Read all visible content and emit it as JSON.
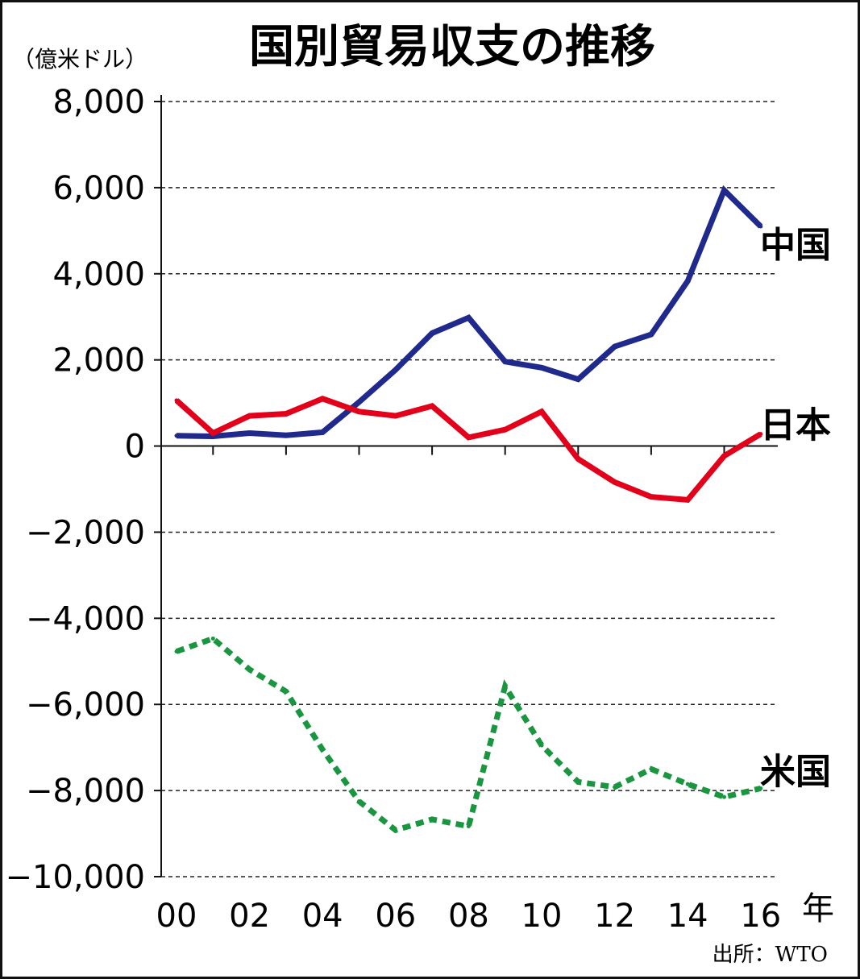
{
  "chart_data": {
    "type": "line",
    "title": "国別貿易収支の推移",
    "ylabel": "（億米ドル）",
    "xlabel": "年",
    "source": "出所：WTO",
    "ylim": [
      -10000,
      8000
    ],
    "yticks": [
      8000,
      6000,
      4000,
      2000,
      0,
      -2000,
      -4000,
      -6000,
      -8000,
      -10000
    ],
    "ytick_labels": [
      "8,000",
      "6,000",
      "4,000",
      "2,000",
      "0",
      "−2,000",
      "−4,000",
      "−6,000",
      "−8,000",
      "−10,000"
    ],
    "x": [
      2000,
      2001,
      2002,
      2003,
      2004,
      2005,
      2006,
      2007,
      2008,
      2009,
      2010,
      2011,
      2012,
      2013,
      2014,
      2015,
      2016
    ],
    "xtick_values": [
      2000,
      2002,
      2004,
      2006,
      2008,
      2010,
      2012,
      2014,
      2016
    ],
    "xtick_labels": [
      "00",
      "02",
      "04",
      "06",
      "08",
      "10",
      "12",
      "14",
      "16"
    ],
    "grid": true,
    "series": [
      {
        "name": "中国",
        "color": "#1f2a8c",
        "style": "solid",
        "values": [
          240,
          225,
          300,
          250,
          320,
          1020,
          1770,
          2620,
          2980,
          1960,
          1820,
          1550,
          2310,
          2590,
          3830,
          5940,
          5100
        ]
      },
      {
        "name": "日本",
        "color": "#e2001a",
        "style": "solid",
        "values": [
          1060,
          300,
          700,
          750,
          1100,
          800,
          700,
          930,
          200,
          380,
          800,
          -300,
          -840,
          -1180,
          -1250,
          -230,
          280
        ]
      },
      {
        "name": "米国",
        "color": "#1a9641",
        "style": "dashed",
        "values": [
          -4770,
          -4470,
          -5190,
          -5700,
          -7050,
          -8250,
          -8920,
          -8670,
          -8830,
          -5580,
          -6950,
          -7800,
          -7920,
          -7500,
          -7850,
          -8150,
          -7950
        ]
      }
    ]
  }
}
